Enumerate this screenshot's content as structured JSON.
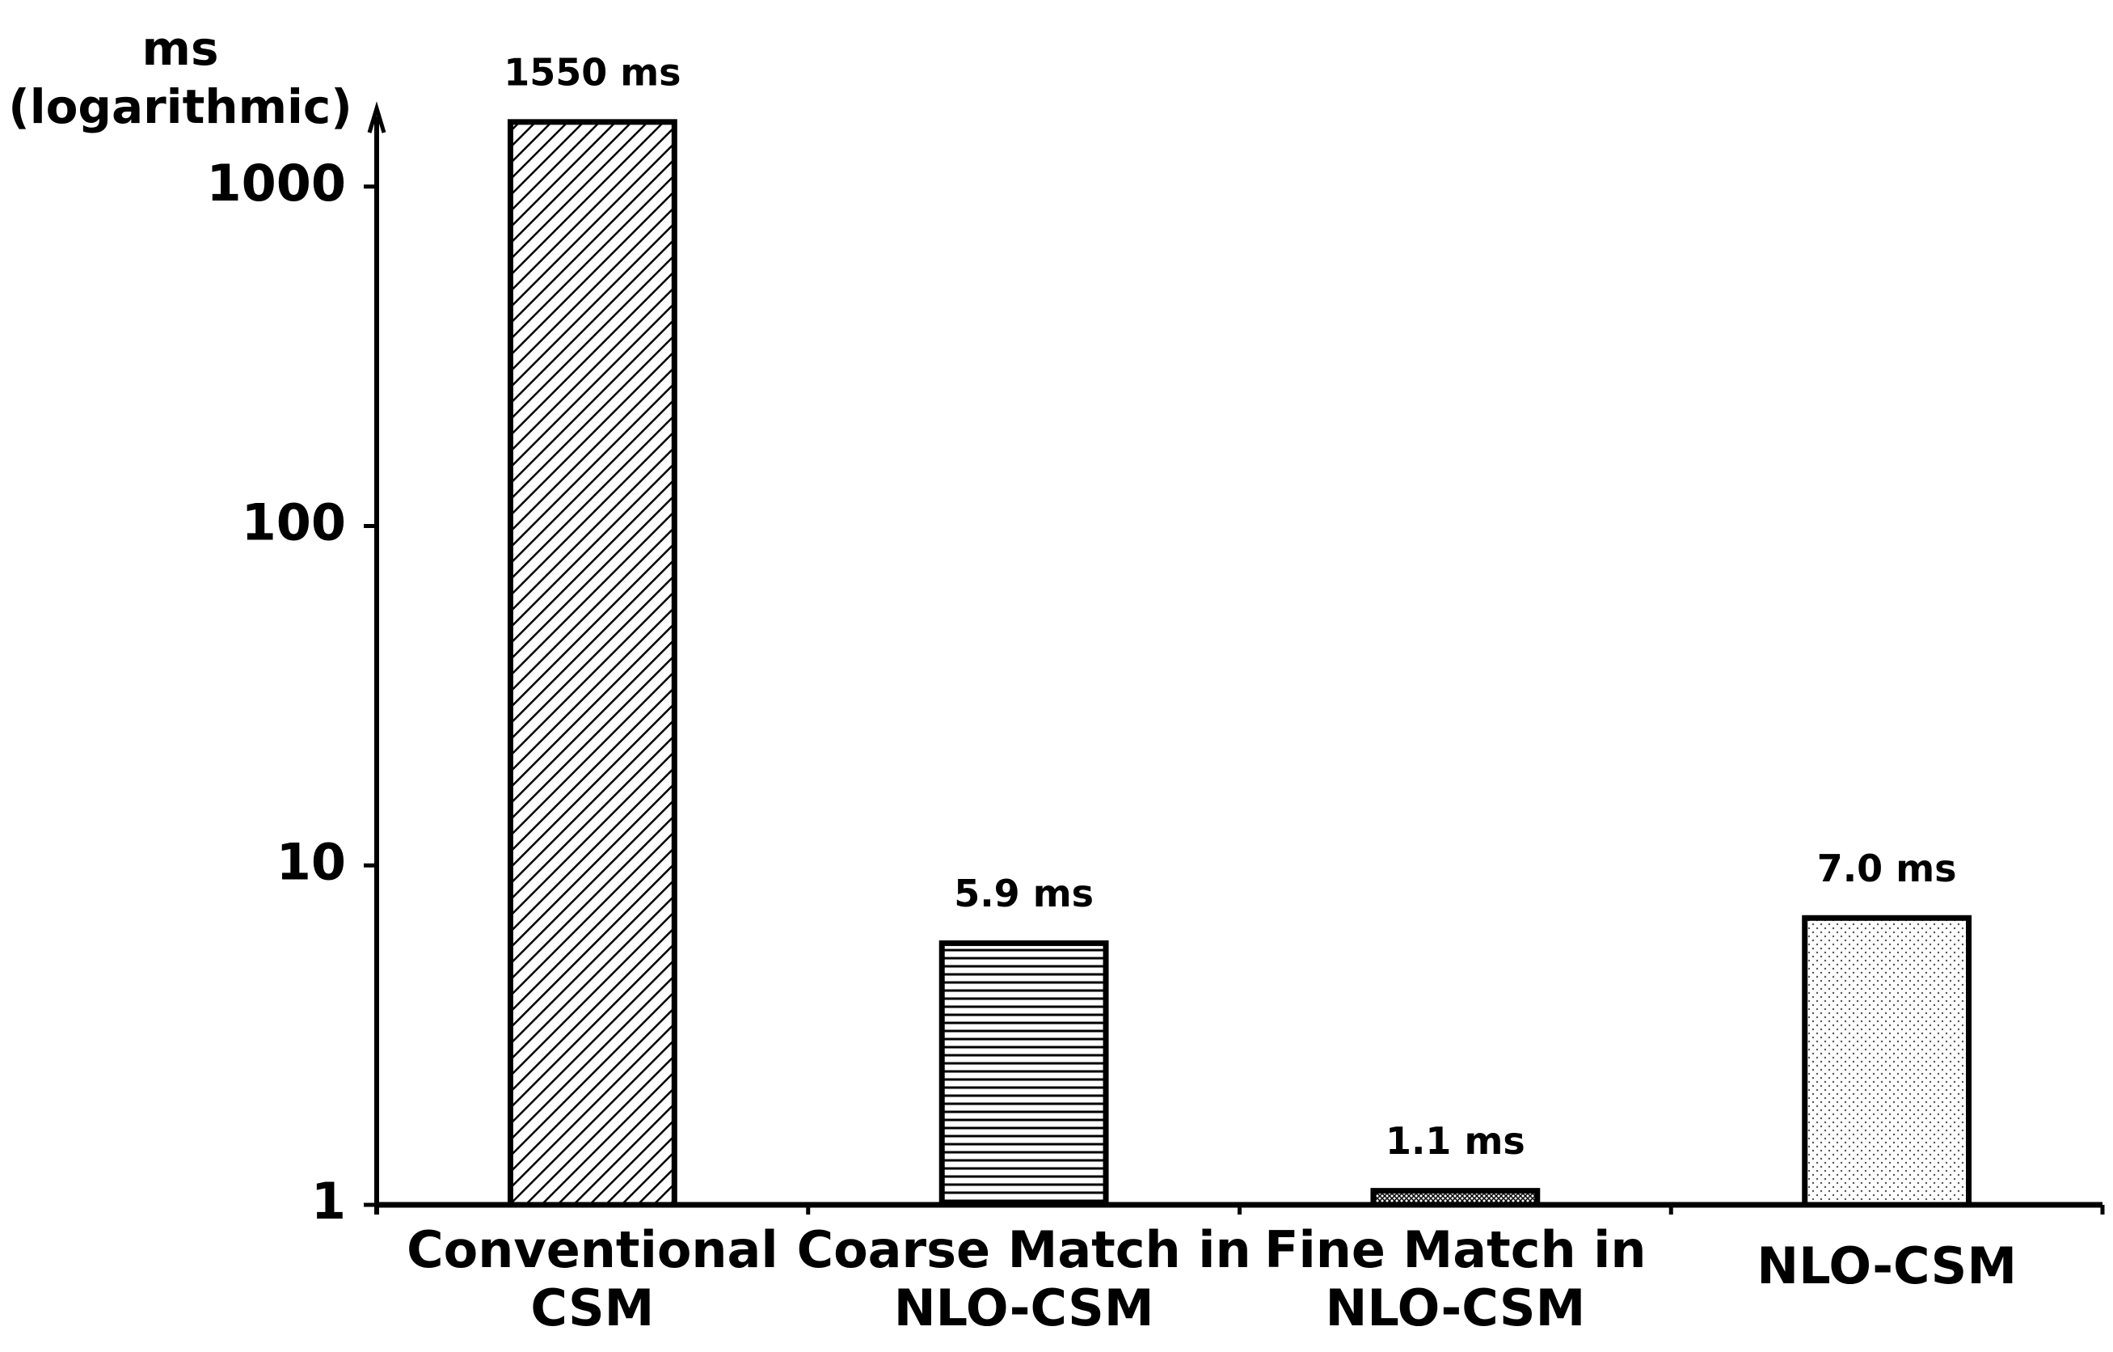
{
  "chart_data": {
    "type": "bar",
    "y_label": [
      "ms",
      "(logarithmic)"
    ],
    "categories": [
      [
        "Conventional",
        "CSM"
      ],
      [
        "Coarse Match in",
        "NLO-CSM"
      ],
      [
        "Fine Match in",
        "NLO-CSM"
      ],
      [
        "NLO-CSM"
      ]
    ],
    "values": [
      1550,
      5.9,
      1.1,
      7.0
    ],
    "value_labels": [
      "1550 ms",
      "5.9 ms",
      "1.1 ms",
      "7.0 ms"
    ],
    "patterns": [
      "diagonal",
      "horizontal",
      "crosshatch",
      "dots"
    ],
    "color": "#000000",
    "log_scale": true,
    "ylim": [
      1,
      1700
    ],
    "yticks": [
      1,
      10,
      100,
      1000
    ]
  }
}
